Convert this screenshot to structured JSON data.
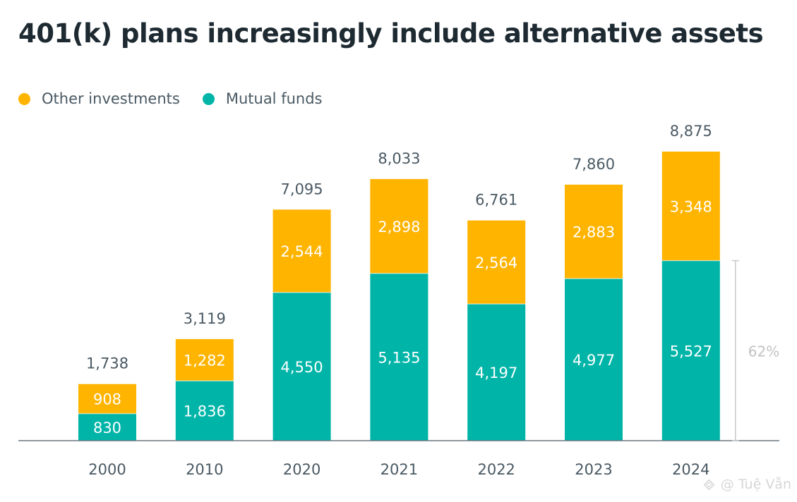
{
  "chart_data": {
    "type": "bar",
    "stacked": true,
    "title": "401(k) plans increasingly include alternative assets",
    "categories": [
      "2000",
      "2010",
      "2020",
      "2021",
      "2022",
      "2023",
      "2024"
    ],
    "series": [
      {
        "name": "Mutual funds",
        "color": "#00b5a8",
        "values": [
          830,
          1836,
          4550,
          5135,
          4197,
          4977,
          5527
        ]
      },
      {
        "name": "Other investments",
        "color": "#ffb400",
        "values": [
          908,
          1282,
          2544,
          2898,
          2564,
          2883,
          3348
        ]
      }
    ],
    "totals": [
      1738,
      3119,
      7095,
      8033,
      6761,
      7860,
      8875
    ],
    "series_labels": [
      [
        "830",
        "1,836",
        "4,550",
        "5,135",
        "4,197",
        "4,977",
        "5,527"
      ],
      [
        "908",
        "1,282",
        "2,544",
        "2,898",
        "2,564",
        "2,883",
        "3,348"
      ]
    ],
    "total_labels": [
      "1,738",
      "3,119",
      "7,095",
      "8,033",
      "6,761",
      "7,860",
      "8,875"
    ],
    "legend": {
      "position": "top-left",
      "order": [
        "Other investments",
        "Mutual funds"
      ]
    },
    "annotation": {
      "category": "2024",
      "series": "Mutual funds",
      "text": "62%"
    },
    "ylim": [
      0,
      8875
    ],
    "grid": false
  },
  "watermark": {
    "text": "@ Tuệ Vẫn",
    "icon": "diamond-logo-icon"
  }
}
